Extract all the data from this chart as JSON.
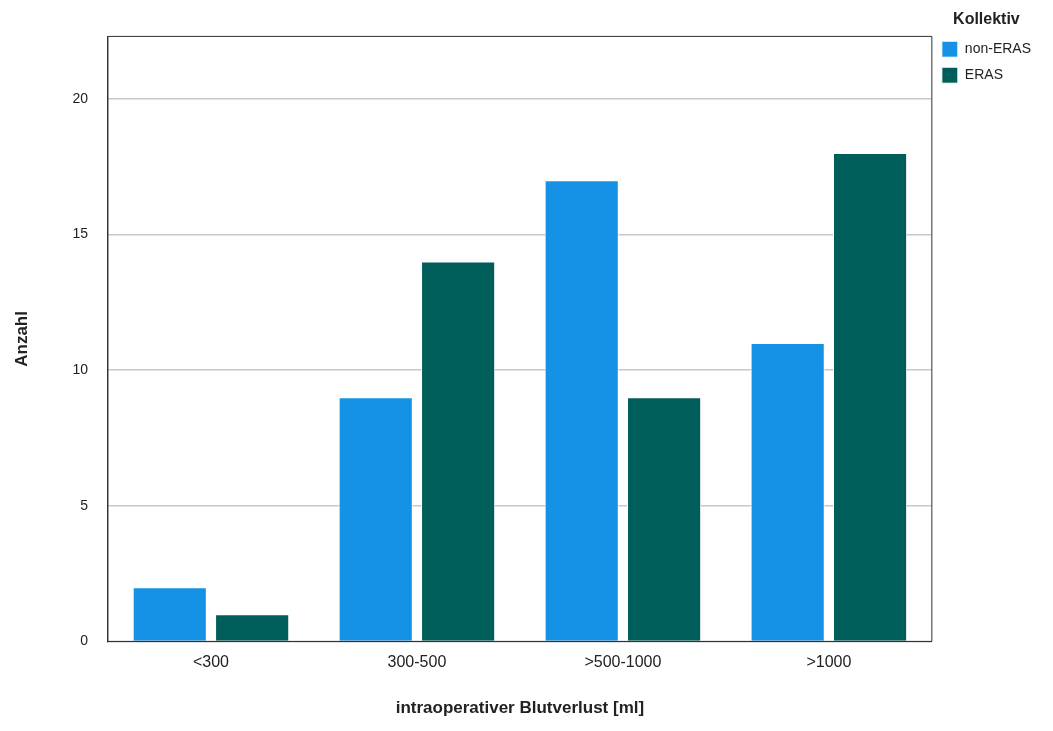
{
  "chart_data": {
    "type": "bar",
    "xlabel": "intraoperativer Blutverlust [ml]",
    "ylabel": "Anzahl",
    "legend_title": "Kollektiv",
    "categories": [
      "<300",
      "300-500",
      ">500-1000",
      ">1000"
    ],
    "series": [
      {
        "name": "non-ERAS",
        "color": "#1592e6",
        "values": [
          2,
          9,
          17,
          11
        ]
      },
      {
        "name": "ERAS",
        "color": "#005e5a",
        "values": [
          1,
          14,
          9,
          18
        ]
      }
    ],
    "ylim": [
      0,
      22.3
    ],
    "yticks": [
      0,
      5,
      10,
      15,
      20
    ],
    "grid": "y",
    "legend": "top right"
  }
}
